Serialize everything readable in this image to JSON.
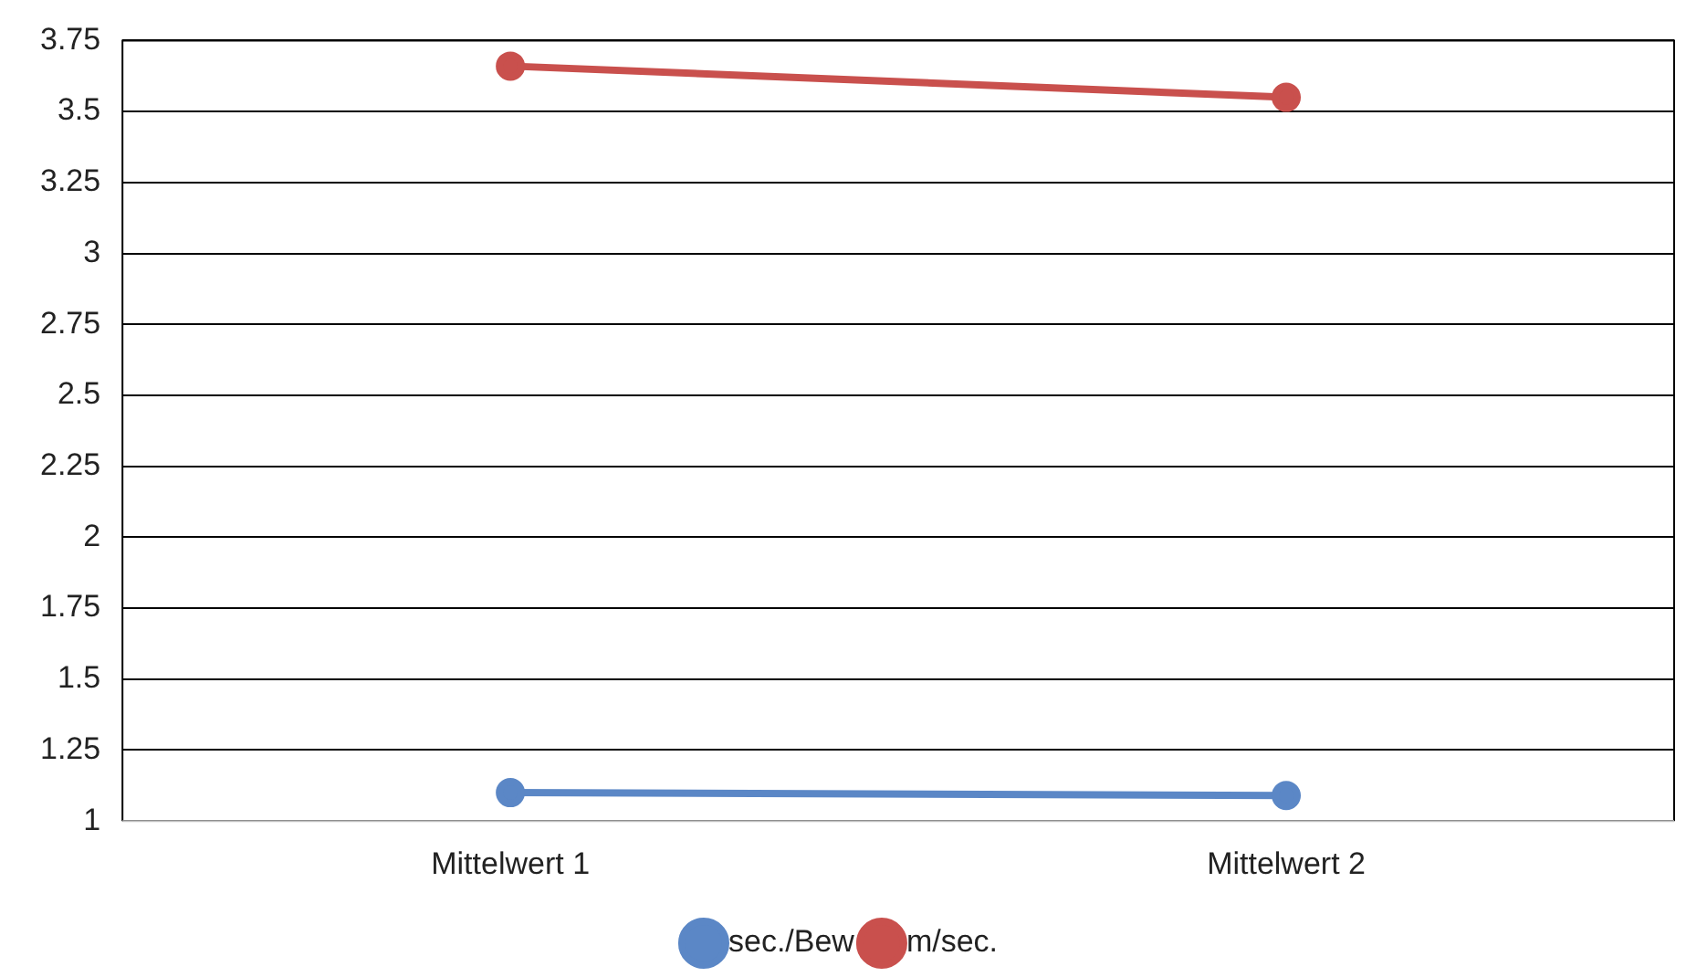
{
  "chart_data": {
    "type": "line",
    "categories": [
      "Mittelwert 1",
      "Mittelwert 2"
    ],
    "series": [
      {
        "name": "sec./Bew",
        "color": "#5b87c6",
        "values": [
          1.1,
          1.09
        ]
      },
      {
        "name": "m/sec.",
        "color": "#c9504d",
        "values": [
          3.66,
          3.55
        ]
      }
    ],
    "ylim": [
      1,
      3.75
    ],
    "yticks": [
      1,
      1.25,
      1.5,
      1.75,
      2,
      2.25,
      2.5,
      2.75,
      3,
      3.25,
      3.5,
      3.75
    ],
    "grid": "y",
    "legend": "bottom",
    "marker": "circle",
    "line_style": "solid"
  }
}
